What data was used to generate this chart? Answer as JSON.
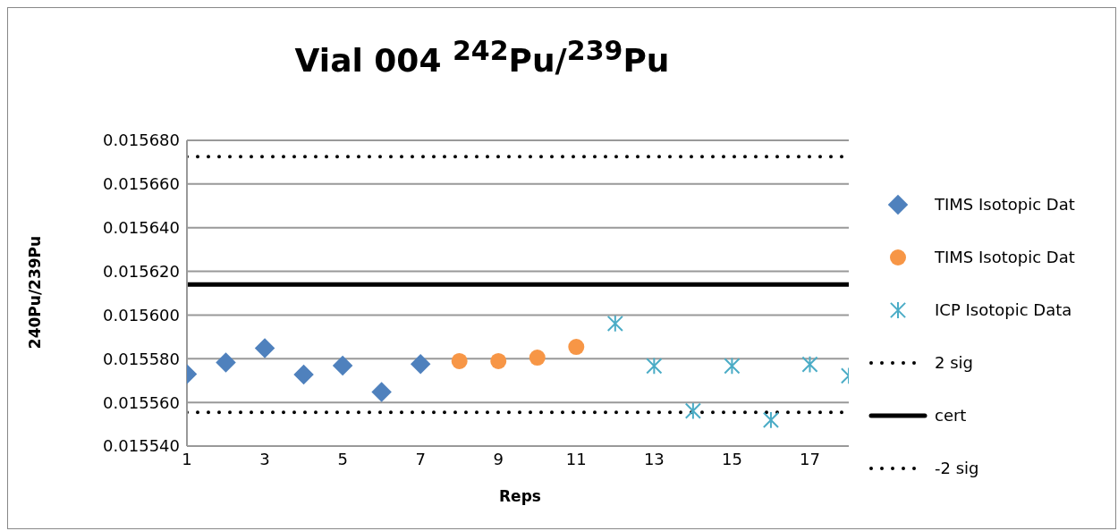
{
  "chart_data": {
    "type": "scatter",
    "title": "Vial 004 $^{242}$Pu/$^{239}$Pu",
    "xlabel": "Reps",
    "ylabel": "240Pu/239Pu",
    "xlim": [
      1,
      18
    ],
    "xticks": [
      1,
      3,
      5,
      7,
      9,
      11,
      13,
      15,
      17
    ],
    "ylim": [
      0.01554,
      0.01568
    ],
    "yticks": [
      {
        "value": 0.01554,
        "label": "0.015540"
      },
      {
        "value": 0.01556,
        "label": "0.015560"
      },
      {
        "value": 0.01558,
        "label": "0.015580"
      },
      {
        "value": 0.0156,
        "label": "0.015600"
      },
      {
        "value": 0.01562,
        "label": "0.015620"
      },
      {
        "value": 0.01564,
        "label": "0.015640"
      },
      {
        "value": 0.01566,
        "label": "0.015660"
      },
      {
        "value": 0.01568,
        "label": "0.015680"
      }
    ],
    "grid": "y",
    "legend": "right",
    "series": [
      {
        "name": "TIMS Isotopic Dat",
        "marker": "diamond",
        "color": "#4f81bd",
        "x": [
          1,
          2,
          3,
          4,
          5,
          6,
          7
        ],
        "values": [
          0.015573,
          0.0155783,
          0.0155848,
          0.0155727,
          0.0155768,
          0.0155648,
          0.0155776
        ]
      },
      {
        "name": "TIMS Isotopic Dat",
        "marker": "circle",
        "color": "#f79646",
        "x": [
          8,
          9,
          10,
          11
        ],
        "values": [
          0.0155789,
          0.0155789,
          0.0155805,
          0.0155854
        ]
      },
      {
        "name": "ICP Isotopic Data",
        "marker": "cross",
        "color": "#4bacc6",
        "x": [
          12,
          13,
          14,
          15,
          16,
          17,
          18
        ],
        "values": [
          0.0155961,
          0.0155767,
          0.0155561,
          0.0155767,
          0.0155519,
          0.0155774,
          0.0155722
        ]
      },
      {
        "name": "2 sig",
        "type": "line",
        "line_style": "dotted",
        "marker": "none",
        "color": "#000000",
        "x": [
          1,
          18
        ],
        "values": [
          0.0156725,
          0.0156725
        ]
      },
      {
        "name": "cert",
        "type": "line",
        "line_style": "solid",
        "marker": "none",
        "color": "#000000",
        "x": [
          1,
          18
        ],
        "values": [
          0.015614,
          0.015614
        ]
      },
      {
        "name": "-2 sig",
        "type": "line",
        "line_style": "dotted",
        "marker": "none",
        "color": "#000000",
        "x": [
          1,
          18
        ],
        "values": [
          0.0155555,
          0.0155555
        ]
      }
    ]
  }
}
